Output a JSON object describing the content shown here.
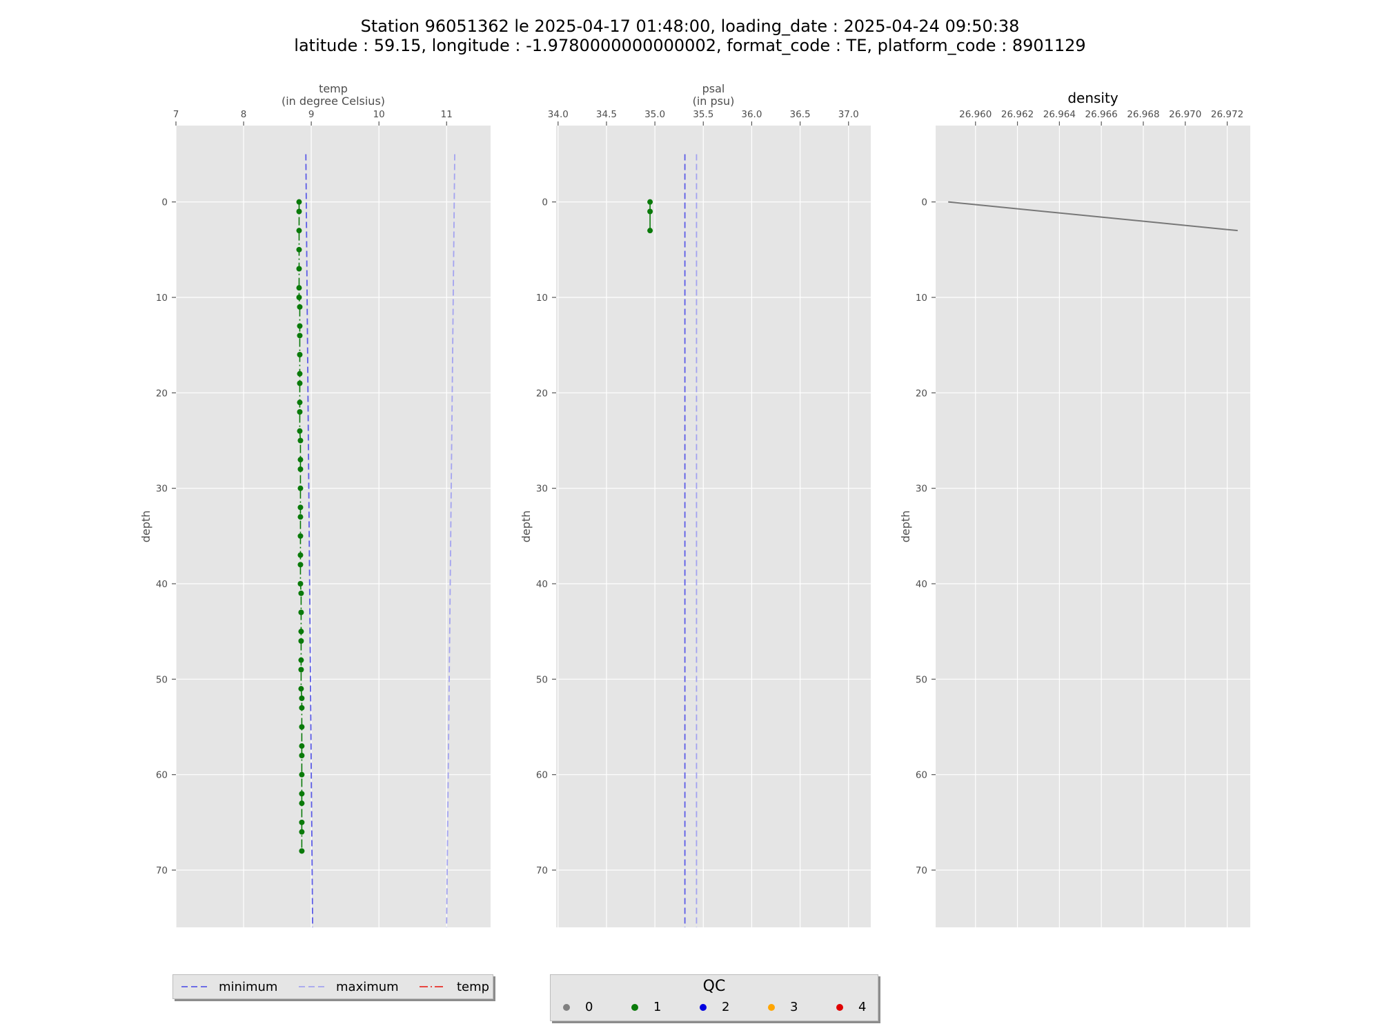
{
  "title": {
    "line1": "Station 96051362 le 2025-04-17 01:48:00, loading_date : 2025-04-24 09:50:38",
    "line2": "latitude : 59.15, longitude : -1.9780000000000002, format_code : TE, platform_code : 8901129"
  },
  "colors": {
    "panel_bg": "#e5e5e5",
    "grid": "#ffffff",
    "minimum": "#5b5be6",
    "maximum": "#a3a3f0",
    "temp_line": "#e8302a",
    "qc1": "#0a7a0a",
    "density": "#777777"
  },
  "chart_data": [
    {
      "type": "line",
      "title": "temp",
      "subtitle": "(in degree Celsius)",
      "xlabel": "temp\n(in degree Celsius)",
      "ylabel": "depth",
      "xlim": [
        7,
        11.65
      ],
      "ylim": [
        76,
        -8
      ],
      "x_ticks": [
        7,
        8,
        9,
        10,
        11
      ],
      "y_ticks": [
        0,
        10,
        20,
        30,
        40,
        50,
        60,
        70
      ],
      "grid": true,
      "x_axis_position": "top",
      "series": [
        {
          "name": "minimum",
          "style": "dashed",
          "x": [
            8.92,
            9.02
          ],
          "y": [
            -5,
            76
          ]
        },
        {
          "name": "maximum",
          "style": "dashed",
          "x": [
            11.12,
            11.0
          ],
          "y": [
            -5,
            76
          ]
        },
        {
          "name": "temp",
          "style": "dashdot",
          "depth": [
            0,
            1,
            3,
            5,
            7,
            9,
            10,
            11,
            13,
            14,
            16,
            18,
            19,
            21,
            22,
            24,
            25,
            27,
            28,
            30,
            32,
            33,
            35,
            37,
            38,
            40,
            41,
            43,
            45,
            46,
            48,
            49,
            51,
            52,
            53,
            55,
            57,
            58,
            60,
            62,
            63,
            65,
            66,
            68
          ],
          "values": [
            8.82,
            8.82,
            8.82,
            8.82,
            8.82,
            8.82,
            8.82,
            8.83,
            8.83,
            8.83,
            8.83,
            8.83,
            8.83,
            8.83,
            8.83,
            8.83,
            8.84,
            8.84,
            8.84,
            8.84,
            8.84,
            8.84,
            8.84,
            8.84,
            8.84,
            8.84,
            8.85,
            8.85,
            8.85,
            8.85,
            8.85,
            8.85,
            8.85,
            8.86,
            8.86,
            8.86,
            8.86,
            8.86,
            8.86,
            8.86,
            8.86,
            8.86,
            8.86,
            8.86
          ],
          "qc": [
            1,
            1,
            1,
            1,
            1,
            1,
            1,
            1,
            1,
            1,
            1,
            1,
            1,
            1,
            1,
            1,
            1,
            1,
            1,
            1,
            1,
            1,
            1,
            1,
            1,
            1,
            1,
            1,
            1,
            1,
            1,
            1,
            1,
            1,
            1,
            1,
            1,
            1,
            1,
            1,
            1,
            1,
            1,
            1
          ]
        }
      ]
    },
    {
      "type": "line",
      "title": "psal",
      "subtitle": "(in psu)",
      "ylabel": "depth",
      "xlim": [
        33.98,
        37.23
      ],
      "ylim": [
        76,
        -8
      ],
      "x_ticks": [
        34.0,
        34.5,
        35.0,
        35.5,
        36.0,
        36.5,
        37.0
      ],
      "x_tick_labels": [
        "34.0",
        "34.5",
        "35.0",
        "35.5",
        "36.0",
        "36.5",
        "37.0"
      ],
      "y_ticks": [
        0,
        10,
        20,
        30,
        40,
        50,
        60,
        70
      ],
      "grid": true,
      "x_axis_position": "top",
      "series": [
        {
          "name": "minimum",
          "style": "dashed",
          "x": [
            35.31,
            35.31
          ],
          "y": [
            -5,
            76
          ]
        },
        {
          "name": "maximum",
          "style": "dashed",
          "x": [
            35.43,
            35.43
          ],
          "y": [
            -5,
            76
          ]
        },
        {
          "name": "psal",
          "style": "solid",
          "depth": [
            0,
            1,
            3
          ],
          "values": [
            34.95,
            34.95,
            34.95
          ],
          "qc": [
            1,
            1,
            1
          ]
        }
      ]
    },
    {
      "type": "line",
      "title": "density",
      "ylabel": "depth",
      "xlim": [
        26.9581,
        26.9731
      ],
      "ylim": [
        76,
        -8
      ],
      "x_ticks": [
        26.96,
        26.962,
        26.964,
        26.966,
        26.968,
        26.97,
        26.972
      ],
      "x_tick_labels": [
        "26.960",
        "26.962",
        "26.964",
        "26.966",
        "26.968",
        "26.970",
        "26.972"
      ],
      "y_ticks": [
        0,
        10,
        20,
        30,
        40,
        50,
        60,
        70
      ],
      "grid": true,
      "x_axis_position": "top",
      "series": [
        {
          "name": "density",
          "style": "solid",
          "depth": [
            0,
            3
          ],
          "values": [
            26.9587,
            26.9725
          ]
        }
      ]
    }
  ],
  "legend_lines": {
    "items": [
      {
        "label": "minimum",
        "style": "dashed",
        "color_key": "minimum"
      },
      {
        "label": "maximum",
        "style": "dashed",
        "color_key": "maximum"
      },
      {
        "label": "temp",
        "style": "dashdot",
        "color_key": "temp_line"
      }
    ]
  },
  "legend_qc": {
    "title": "QC",
    "items": [
      {
        "label": "0",
        "color": "#808080"
      },
      {
        "label": "1",
        "color": "#0a7a0a"
      },
      {
        "label": "2",
        "color": "#0000e0"
      },
      {
        "label": "3",
        "color": "#ffa500"
      },
      {
        "label": "4",
        "color": "#e00000"
      }
    ]
  }
}
